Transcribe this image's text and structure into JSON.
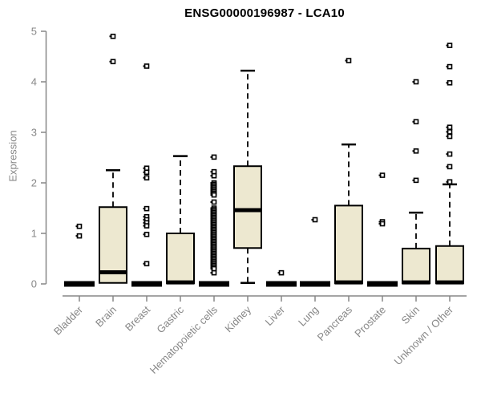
{
  "chart_data": {
    "type": "boxplot",
    "title": "ENSG00000196987 - LCA10",
    "ylabel": "Expression",
    "xlabel": "",
    "ylim": [
      0,
      5
    ],
    "yticks": [
      "0",
      "1",
      "2",
      "3",
      "4",
      "5"
    ],
    "grid": false,
    "legend": "none",
    "colors": {
      "box_fill": "#EDE8D0",
      "box_stroke": "#000000",
      "median": "#000000",
      "axis": "#878787",
      "tick_label": "#878787",
      "title": "#000000"
    },
    "categories": [
      "Bladder",
      "Brain",
      "Breast",
      "Gastric",
      "Hematopoietic cells",
      "Kidney",
      "Liver",
      "Lung",
      "Pancreas",
      "Prostate",
      "Skin",
      "Unknown / Other"
    ],
    "boxes": [
      {
        "category": "Bladder",
        "collapsed": true,
        "q1": 0,
        "median": 0,
        "q3": 0,
        "whisker_low": null,
        "whisker_high": null,
        "outliers": [
          1.14,
          0.95
        ]
      },
      {
        "category": "Brain",
        "collapsed": false,
        "q1": 0.02,
        "median": 0.23,
        "q3": 1.52,
        "whisker_low": null,
        "whisker_high": 2.25,
        "outliers": [
          4.9,
          4.4
        ]
      },
      {
        "category": "Breast",
        "collapsed": true,
        "q1": 0,
        "median": 0,
        "q3": 0,
        "whisker_low": null,
        "whisker_high": null,
        "outliers": [
          4.31,
          2.29,
          2.21,
          2.1,
          1.49,
          1.33,
          1.27,
          1.21,
          1.15,
          0.98,
          0.4
        ]
      },
      {
        "category": "Gastric",
        "collapsed": false,
        "q1": 0.01,
        "median": 0.03,
        "q3": 1.0,
        "whisker_low": null,
        "whisker_high": 2.53,
        "outliers": []
      },
      {
        "category": "Hematopoietic cells",
        "collapsed": true,
        "q1": 0,
        "median": 0,
        "q3": 0,
        "whisker_low": null,
        "whisker_high": null,
        "outliers": [
          2.51,
          2.22,
          2.14,
          2.0,
          1.97,
          1.94,
          1.91,
          1.88,
          1.85,
          1.82,
          1.79,
          1.76,
          1.62,
          1.5,
          1.47,
          1.44,
          1.41,
          1.38,
          1.35,
          1.32,
          1.29,
          1.26,
          1.23,
          1.2,
          1.17,
          1.14,
          1.11,
          1.08,
          1.05,
          1.02,
          0.99,
          0.96,
          0.93,
          0.9,
          0.87,
          0.84,
          0.81,
          0.78,
          0.75,
          0.72,
          0.69,
          0.66,
          0.63,
          0.6,
          0.57,
          0.54,
          0.51,
          0.48,
          0.45,
          0.42,
          0.39,
          0.36,
          0.33,
          0.3,
          0.22
        ]
      },
      {
        "category": "Kidney",
        "collapsed": false,
        "q1": 0.71,
        "median": 1.46,
        "q3": 2.33,
        "whisker_low": 0.02,
        "whisker_high": 4.22,
        "outliers": []
      },
      {
        "category": "Liver",
        "collapsed": true,
        "q1": 0,
        "median": 0,
        "q3": 0,
        "whisker_low": null,
        "whisker_high": null,
        "outliers": [
          0.22
        ]
      },
      {
        "category": "Lung",
        "collapsed": true,
        "q1": 0,
        "median": 0,
        "q3": 0,
        "whisker_low": null,
        "whisker_high": null,
        "outliers": [
          1.27
        ]
      },
      {
        "category": "Pancreas",
        "collapsed": false,
        "q1": 0.01,
        "median": 0.03,
        "q3": 1.55,
        "whisker_low": null,
        "whisker_high": 2.76,
        "outliers": [
          4.42
        ]
      },
      {
        "category": "Prostate",
        "collapsed": true,
        "q1": 0,
        "median": 0,
        "q3": 0,
        "whisker_low": null,
        "whisker_high": null,
        "outliers": [
          2.15,
          1.23,
          1.19
        ]
      },
      {
        "category": "Skin",
        "collapsed": false,
        "q1": 0.01,
        "median": 0.03,
        "q3": 0.7,
        "whisker_low": null,
        "whisker_high": 1.41,
        "outliers": [
          4.0,
          3.21,
          2.63,
          2.05
        ]
      },
      {
        "category": "Unknown / Other",
        "collapsed": false,
        "q1": 0.01,
        "median": 0.03,
        "q3": 0.75,
        "whisker_low": null,
        "whisker_high": 1.97,
        "outliers": [
          4.72,
          4.3,
          3.98,
          3.1,
          3.01,
          2.92,
          2.57,
          2.32,
          2.02
        ]
      }
    ]
  }
}
